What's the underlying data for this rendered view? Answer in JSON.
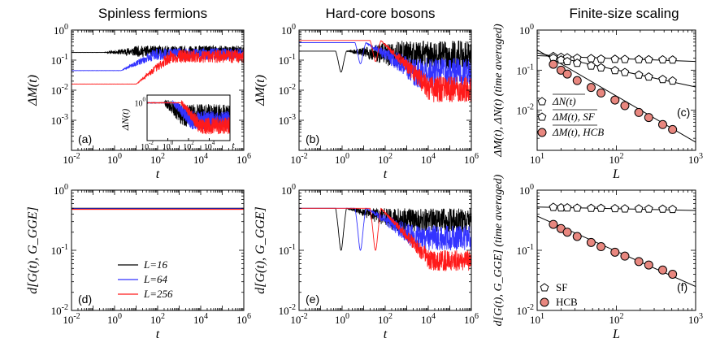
{
  "figure": {
    "titles": [
      "Spinless fermions",
      "Hard-core bosons",
      "Finite-size scaling"
    ],
    "series_colors": {
      "L16": "#000000",
      "L64": "#3333ff",
      "L256": "#ff1a1a"
    },
    "marker_fill": "#e8877f"
  },
  "chart_data": [
    {
      "panel": "(a)",
      "type": "line",
      "xscale": "log",
      "yscale": "log",
      "xlim": [
        0.01,
        1000000
      ],
      "ylim": [
        0.0001,
        1
      ],
      "xlabel": "t",
      "ylabel": "ΔM(t)",
      "xticks": [
        "10-2",
        "100",
        "102",
        "104",
        "106"
      ],
      "yticks": [
        "10-3",
        "10-2",
        "10-1",
        "100"
      ],
      "series": [
        {
          "name": "L=16",
          "initial": 0.18,
          "rise_t": 0.3,
          "final_low": 0.13,
          "final_high": 0.3
        },
        {
          "name": "L=64",
          "initial": 0.045,
          "rise_t": 2,
          "final_low": 0.1,
          "final_high": 0.25
        },
        {
          "name": "L=256",
          "initial": 0.016,
          "rise_t": 10,
          "final_low": 0.08,
          "final_high": 0.22
        }
      ],
      "inset": {
        "ylabel": "ΔN(t)",
        "xlabel": "t",
        "xticks": [
          "10-2",
          "100",
          "102",
          "104"
        ],
        "yticks": [
          "100"
        ],
        "xlim": [
          0.01,
          1000000
        ],
        "ylim": [
          0.004,
          3
        ],
        "series": [
          {
            "name": "L=16",
            "initial": 1.0,
            "drop_t": 0.5,
            "final_low": 0.03,
            "final_high": 0.8
          },
          {
            "name": "L=64",
            "initial": 1.0,
            "drop_t": 3,
            "final_low": 0.02,
            "final_high": 0.3
          },
          {
            "name": "L=256",
            "initial": 1.0,
            "drop_t": 20,
            "final_low": 0.01,
            "final_high": 0.12
          }
        ]
      }
    },
    {
      "panel": "(b)",
      "type": "line",
      "xscale": "log",
      "yscale": "log",
      "xlim": [
        0.01,
        1000000
      ],
      "ylim": [
        0.0001,
        1
      ],
      "xlabel": "t",
      "ylabel": "ΔM(t)",
      "xticks": [
        "10-2",
        "100",
        "102",
        "104",
        "106"
      ],
      "yticks": [
        "10-3",
        "10-2",
        "10-1",
        "100"
      ],
      "series": [
        {
          "name": "L=16",
          "initial": 0.2,
          "final_low": 0.05,
          "final_high": 0.45
        },
        {
          "name": "L=64",
          "initial": 0.38,
          "final_low": 0.012,
          "final_high": 0.12
        },
        {
          "name": "L=256",
          "initial": 0.45,
          "final_low": 0.004,
          "final_high": 0.03
        }
      ]
    },
    {
      "panel": "(c)",
      "type": "scatter",
      "xscale": "log",
      "yscale": "log",
      "xlim": [
        10,
        1000
      ],
      "ylim": [
        0.001,
        1
      ],
      "xlabel": "L",
      "ylabel": "ΔM(t), ΔN(t) (time averaged)",
      "xticks": [
        "101",
        "102",
        "103"
      ],
      "yticks": [
        "10-2",
        "10-1",
        "100"
      ],
      "L": [
        16,
        20,
        24,
        32,
        48,
        64,
        96,
        128,
        192,
        256,
        384,
        512
      ],
      "series": [
        {
          "name": "ΔN(t) average",
          "marker": "pentagon-open",
          "values": [
            0.22,
            0.21,
            0.205,
            0.2,
            0.195,
            0.19,
            0.188,
            0.186,
            0.185,
            0.183,
            0.182,
            0.18
          ]
        },
        {
          "name": "ΔM(t) average, SF",
          "marker": "pentagon-open",
          "values": [
            0.2,
            0.18,
            0.165,
            0.15,
            0.128,
            0.115,
            0.098,
            0.088,
            0.076,
            0.068,
            0.059,
            0.054
          ]
        },
        {
          "name": "ΔM(t) average, HCB",
          "marker": "circle-filled",
          "values": [
            0.14,
            0.1,
            0.08,
            0.055,
            0.037,
            0.027,
            0.018,
            0.013,
            0.0088,
            0.0066,
            0.0044,
            0.0033
          ]
        }
      ],
      "fits": [
        {
          "series": "ΔN(t) average",
          "from": [
            10,
            0.23
          ],
          "to": [
            1000,
            0.165
          ]
        },
        {
          "series": "ΔM(t) average, SF",
          "from": [
            10,
            0.27
          ],
          "to": [
            1000,
            0.038
          ]
        },
        {
          "series": "ΔM(t) average, HCB",
          "from": [
            10,
            0.32
          ],
          "to": [
            1000,
            0.0016
          ]
        }
      ],
      "legend": [
        "ΔN(t)",
        "ΔM(t), SF",
        "ΔM(t), HCB"
      ]
    },
    {
      "panel": "(d)",
      "type": "line",
      "xscale": "log",
      "yscale": "log",
      "xlim": [
        0.01,
        1000000
      ],
      "ylim": [
        0.01,
        1
      ],
      "xlabel": "t",
      "ylabel": "d[G(t), G_GGE]",
      "xticks": [
        "10-2",
        "100",
        "102",
        "104",
        "106"
      ],
      "yticks": [
        "10-2",
        "10-1",
        "100"
      ],
      "series": [
        {
          "name": "L=16",
          "value": 0.5
        },
        {
          "name": "L=64",
          "value": 0.49
        },
        {
          "name": "L=256",
          "value": 0.48
        }
      ],
      "legend": [
        "L=16",
        "L=64",
        "L=256"
      ]
    },
    {
      "panel": "(e)",
      "type": "line",
      "xscale": "log",
      "yscale": "log",
      "xlim": [
        0.01,
        1000000
      ],
      "ylim": [
        0.01,
        1
      ],
      "xlabel": "t",
      "ylabel": "d[G(t), G_GGE]",
      "xticks": [
        "10-2",
        "100",
        "102",
        "104",
        "106"
      ],
      "yticks": [
        "10-2",
        "10-1",
        "100"
      ],
      "series": [
        {
          "name": "L=16",
          "initial": 0.5,
          "final_low": 0.2,
          "final_high": 0.5
        },
        {
          "name": "L=64",
          "initial": 0.5,
          "final_low": 0.1,
          "final_high": 0.26
        },
        {
          "name": "L=256",
          "initial": 0.5,
          "final_low": 0.045,
          "final_high": 0.1
        }
      ]
    },
    {
      "panel": "(f)",
      "type": "scatter",
      "xscale": "log",
      "yscale": "log",
      "xlim": [
        10,
        1000
      ],
      "ylim": [
        0.01,
        1
      ],
      "xlabel": "L",
      "ylabel": "d[G(t), G_GGE] (time averaged)",
      "xticks": [
        "101",
        "102",
        "103"
      ],
      "yticks": [
        "10-2",
        "10-1",
        "100"
      ],
      "L": [
        16,
        20,
        24,
        32,
        48,
        64,
        96,
        128,
        192,
        256,
        384,
        512
      ],
      "series": [
        {
          "name": "SF",
          "marker": "pentagon-open",
          "values": [
            0.52,
            0.51,
            0.51,
            0.505,
            0.5,
            0.5,
            0.495,
            0.49,
            0.49,
            0.488,
            0.485,
            0.48
          ]
        },
        {
          "name": "HCB",
          "marker": "circle-filled",
          "values": [
            0.27,
            0.23,
            0.2,
            0.17,
            0.135,
            0.115,
            0.093,
            0.08,
            0.065,
            0.057,
            0.047,
            0.04
          ]
        }
      ],
      "fits": [
        {
          "series": "SF",
          "from": [
            10,
            0.525
          ],
          "to": [
            1000,
            0.46
          ]
        },
        {
          "series": "HCB",
          "from": [
            10,
            0.37
          ],
          "to": [
            1000,
            0.025
          ]
        }
      ],
      "legend": [
        "SF",
        "HCB"
      ]
    }
  ]
}
